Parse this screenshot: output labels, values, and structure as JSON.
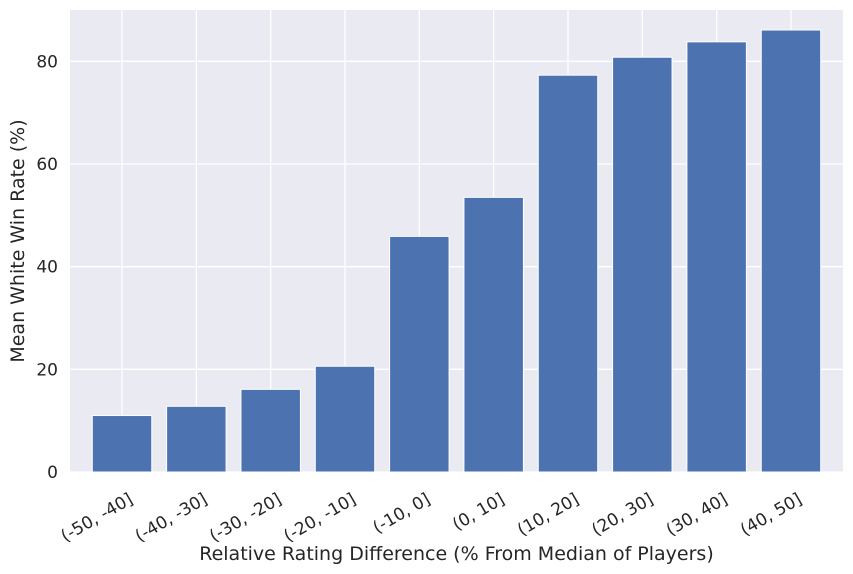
{
  "chart_data": {
    "type": "bar",
    "title": "",
    "xlabel": "Relative Rating Difference (% From Median of Players)",
    "ylabel": "Mean White Win Rate (%)",
    "categories": [
      "(-50, -40]",
      "(-40, -30]",
      "(-30, -20]",
      "(-20, -10]",
      "(-10, 0]",
      "(0, 10]",
      "(10, 20]",
      "(20, 30]",
      "(30, 40]",
      "(40, 50]"
    ],
    "values": [
      11.0,
      12.8,
      16.1,
      20.6,
      45.9,
      53.5,
      77.3,
      80.8,
      83.8,
      86.1
    ],
    "ylim": [
      0,
      90
    ],
    "yticks": [
      0,
      20,
      40,
      60,
      80
    ],
    "grid": true,
    "style": {
      "bar_color": "#4c72b0",
      "background": "#eaeaf2",
      "grid_color": "#ffffff"
    }
  }
}
